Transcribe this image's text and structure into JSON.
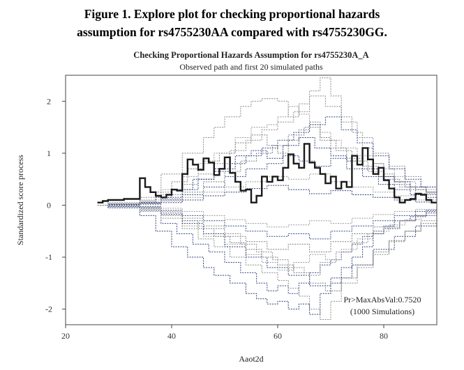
{
  "figure_caption": {
    "line1": "Figure 1. Explore plot for checking proportional hazards",
    "line2": "assumption for rs4755230AA compared with rs4755230GG."
  },
  "chart_data": {
    "type": "line",
    "title": "Checking Proportional Hazards Assumption for rs4755230A_A",
    "subtitle": "Observed path and first 20 simulated paths",
    "xlabel": "Aaot2d",
    "ylabel": "Standardized score process",
    "xlim": [
      20,
      90
    ],
    "ylim": [
      -2.3,
      2.5
    ],
    "xticks": [
      20,
      40,
      60,
      80
    ],
    "yticks": [
      -2,
      -1,
      0,
      1,
      2
    ],
    "grid": false,
    "annotation": {
      "line1": "Pr>MaxAbsVal:0.7520",
      "line2": "(1000 Simulations)"
    },
    "observed": {
      "x": [
        26,
        27,
        28,
        31,
        34,
        35,
        36,
        37,
        38,
        39,
        40,
        41,
        42,
        43,
        44,
        45,
        46,
        47,
        48,
        49,
        50,
        51,
        52,
        53,
        54,
        55,
        56,
        57,
        58,
        59,
        60,
        61,
        62,
        63,
        64,
        65,
        66,
        67,
        68,
        69,
        70,
        71,
        72,
        73,
        74,
        75,
        76,
        77,
        78,
        79,
        80,
        81,
        82,
        83,
        84,
        85,
        86,
        87,
        88,
        89,
        90
      ],
      "y": [
        0.05,
        0.08,
        0.1,
        0.12,
        0.52,
        0.35,
        0.25,
        0.18,
        0.15,
        0.2,
        0.3,
        0.28,
        0.6,
        0.88,
        0.78,
        0.68,
        0.9,
        0.82,
        0.58,
        0.7,
        0.92,
        0.62,
        0.45,
        0.28,
        0.3,
        0.05,
        0.18,
        0.55,
        0.45,
        0.55,
        0.48,
        0.72,
        0.98,
        0.8,
        0.72,
        1.18,
        0.82,
        0.72,
        0.6,
        0.42,
        0.55,
        0.32,
        0.45,
        0.35,
        0.95,
        0.78,
        1.1,
        0.88,
        0.6,
        0.72,
        0.48,
        0.32,
        0.15,
        0.05,
        0.1,
        0.12,
        0.22,
        0.2,
        0.1,
        0.05,
        0.05
      ]
    },
    "simulated": [
      {
        "x": [
          26,
          28,
          34,
          38,
          42,
          46,
          48,
          50,
          53,
          55,
          57,
          60,
          62,
          64,
          66,
          68,
          70,
          72,
          74,
          76,
          78,
          80,
          82,
          84,
          86,
          88,
          90
        ],
        "y": [
          0,
          0.05,
          0.15,
          0.6,
          1.0,
          1.3,
          1.5,
          1.7,
          1.9,
          2.0,
          2.05,
          2.0,
          1.7,
          1.95,
          2.2,
          2.45,
          2.1,
          1.7,
          1.4,
          1.1,
          0.8,
          0.6,
          0.45,
          0.35,
          0.3,
          0.25,
          0.2
        ]
      },
      {
        "x": [
          26,
          28,
          34,
          37,
          40,
          43,
          46,
          48,
          51,
          54,
          56,
          58,
          60,
          62,
          64,
          66,
          68,
          70,
          72,
          74,
          76,
          78,
          80,
          83,
          86,
          88,
          90
        ],
        "y": [
          0,
          -0.05,
          -0.2,
          -0.5,
          -0.8,
          -1.0,
          -1.2,
          -1.35,
          -1.5,
          -1.7,
          -1.8,
          -1.9,
          -1.85,
          -2.0,
          -1.9,
          -2.1,
          -1.7,
          -1.5,
          -1.2,
          -1.0,
          -0.8,
          -0.55,
          -0.45,
          -0.3,
          -0.2,
          -0.1,
          -0.05
        ]
      },
      {
        "x": [
          26,
          28,
          34,
          38,
          42,
          45,
          48,
          52,
          55,
          58,
          60,
          62,
          64,
          66,
          68,
          70,
          72,
          75,
          78,
          80,
          82,
          84,
          86,
          88,
          90
        ],
        "y": [
          0,
          0.02,
          0.1,
          0.3,
          0.55,
          0.8,
          1.0,
          1.3,
          1.5,
          1.55,
          1.7,
          1.9,
          1.75,
          1.55,
          1.4,
          1.25,
          1.1,
          0.95,
          0.8,
          0.7,
          0.55,
          0.45,
          0.35,
          0.3,
          0.2
        ]
      },
      {
        "x": [
          26,
          28,
          34,
          38,
          41,
          44,
          47,
          50,
          53,
          56,
          58,
          60,
          62,
          64,
          66,
          68,
          70,
          72,
          74,
          76,
          78,
          80,
          82,
          85,
          88,
          90
        ],
        "y": [
          0,
          -0.03,
          -0.1,
          -0.35,
          -0.55,
          -0.75,
          -0.9,
          -1.1,
          -1.3,
          -1.5,
          -1.65,
          -1.55,
          -1.7,
          -1.5,
          -1.3,
          -1.15,
          -1.05,
          -0.9,
          -0.75,
          -0.6,
          -0.5,
          -0.4,
          -0.3,
          -0.22,
          -0.15,
          -0.1
        ]
      },
      {
        "x": [
          26,
          28,
          34,
          37,
          40,
          43,
          46,
          49,
          52,
          55,
          58,
          60,
          62,
          64,
          66,
          68,
          70,
          73,
          76,
          79,
          82,
          85,
          88,
          90
        ],
        "y": [
          0,
          0.03,
          0.08,
          0.25,
          0.45,
          0.7,
          0.85,
          1.0,
          1.2,
          1.35,
          1.15,
          1.0,
          1.25,
          1.45,
          1.6,
          1.3,
          1.1,
          0.9,
          0.75,
          0.55,
          0.4,
          0.3,
          0.2,
          0.15
        ]
      },
      {
        "x": [
          26,
          28,
          34,
          38,
          42,
          45,
          48,
          51,
          54,
          57,
          60,
          62,
          64,
          66,
          68,
          70,
          72,
          75,
          78,
          81,
          84,
          87,
          90
        ],
        "y": [
          0,
          -0.02,
          -0.12,
          -0.25,
          -0.45,
          -0.65,
          -0.8,
          -1.0,
          -1.15,
          -1.3,
          -1.45,
          -1.6,
          -1.75,
          -2.0,
          -2.2,
          -1.85,
          -1.5,
          -1.2,
          -0.95,
          -0.7,
          -0.5,
          -0.3,
          -0.2
        ]
      },
      {
        "x": [
          26,
          28,
          34,
          37,
          40,
          44,
          48,
          52,
          55,
          58,
          61,
          64,
          67,
          70,
          73,
          76,
          79,
          82,
          85,
          88,
          90
        ],
        "y": [
          0,
          0.02,
          0.05,
          0.15,
          0.3,
          0.5,
          0.7,
          0.95,
          1.05,
          0.9,
          1.15,
          1.3,
          1.1,
          0.95,
          0.85,
          0.7,
          0.55,
          0.45,
          0.35,
          0.25,
          0.2
        ]
      },
      {
        "x": [
          26,
          28,
          34,
          38,
          42,
          46,
          50,
          54,
          57,
          60,
          63,
          66,
          69,
          72,
          75,
          78,
          81,
          84,
          87,
          90
        ],
        "y": [
          0,
          -0.02,
          -0.08,
          -0.2,
          -0.4,
          -0.6,
          -0.75,
          -0.95,
          -1.1,
          -1.25,
          -1.1,
          -0.95,
          -1.05,
          -0.85,
          -0.65,
          -0.5,
          -0.38,
          -0.28,
          -0.2,
          -0.12
        ]
      },
      {
        "x": [
          26,
          28,
          34,
          38,
          42,
          46,
          50,
          54,
          58,
          61,
          64,
          67,
          70,
          73,
          76,
          79,
          82,
          85,
          88,
          90
        ],
        "y": [
          0,
          0.01,
          0.04,
          0.1,
          0.2,
          0.35,
          0.55,
          0.7,
          0.8,
          0.95,
          0.85,
          0.75,
          0.9,
          0.7,
          0.55,
          0.4,
          0.3,
          0.2,
          0.15,
          0.1
        ]
      },
      {
        "x": [
          26,
          28,
          34,
          38,
          42,
          46,
          50,
          54,
          58,
          62,
          66,
          70,
          74,
          78,
          82,
          86,
          90
        ],
        "y": [
          0,
          -0.01,
          -0.05,
          -0.15,
          -0.3,
          -0.45,
          -0.6,
          -0.7,
          -0.85,
          -0.75,
          -0.9,
          -0.7,
          -0.55,
          -0.42,
          -0.3,
          -0.2,
          -0.1
        ]
      },
      {
        "x": [
          26,
          28,
          34,
          38,
          42,
          45,
          48,
          51,
          54,
          57,
          60,
          63,
          66,
          69,
          72,
          75,
          78,
          81,
          84,
          87,
          90
        ],
        "y": [
          0,
          0.02,
          0.06,
          0.2,
          0.4,
          0.6,
          0.8,
          1.05,
          1.25,
          1.45,
          1.6,
          1.8,
          2.1,
          1.9,
          1.6,
          1.3,
          1.0,
          0.75,
          0.55,
          0.35,
          0.25
        ]
      },
      {
        "x": [
          26,
          28,
          34,
          38,
          42,
          46,
          50,
          54,
          58,
          62,
          66,
          70,
          74,
          78,
          82,
          86,
          90
        ],
        "y": [
          0,
          -0.02,
          -0.06,
          -0.18,
          -0.35,
          -0.55,
          -0.8,
          -1.0,
          -1.2,
          -1.35,
          -1.55,
          -1.4,
          -1.15,
          -0.85,
          -0.6,
          -0.4,
          -0.25
        ]
      },
      {
        "x": [
          26,
          28,
          34,
          38,
          42,
          46,
          50,
          54,
          58,
          62,
          66,
          70,
          74,
          78,
          82,
          86,
          90
        ],
        "y": [
          0,
          0.01,
          0.03,
          0.08,
          0.15,
          0.25,
          0.35,
          0.45,
          0.55,
          0.5,
          0.6,
          0.45,
          0.35,
          0.25,
          0.18,
          0.1,
          0.05
        ]
      },
      {
        "x": [
          26,
          28,
          34,
          38,
          42,
          46,
          50,
          54,
          58,
          62,
          66,
          70,
          74,
          78,
          82,
          86,
          90
        ],
        "y": [
          0,
          -0.01,
          -0.03,
          -0.1,
          -0.2,
          -0.3,
          -0.4,
          -0.5,
          -0.6,
          -0.55,
          -0.65,
          -0.5,
          -0.4,
          -0.3,
          -0.2,
          -0.12,
          -0.06
        ]
      },
      {
        "x": [
          26,
          28,
          34,
          38,
          42,
          46,
          50,
          53,
          56,
          59,
          62,
          65,
          68,
          71,
          74,
          77,
          80,
          83,
          86,
          90
        ],
        "y": [
          0,
          0.02,
          0.05,
          0.12,
          0.25,
          0.45,
          0.65,
          0.85,
          1.0,
          1.15,
          1.35,
          1.5,
          1.25,
          1.05,
          0.85,
          0.65,
          0.5,
          0.35,
          0.22,
          0.15
        ]
      },
      {
        "x": [
          26,
          28,
          34,
          38,
          42,
          46,
          50,
          53,
          56,
          59,
          62,
          65,
          68,
          71,
          74,
          77,
          80,
          83,
          86,
          90
        ],
        "y": [
          0,
          -0.02,
          -0.05,
          -0.12,
          -0.25,
          -0.4,
          -0.55,
          -0.75,
          -0.9,
          -1.05,
          -1.2,
          -1.35,
          -1.1,
          -0.9,
          -0.72,
          -0.55,
          -0.42,
          -0.3,
          -0.2,
          -0.12
        ]
      },
      {
        "x": [
          26,
          28,
          34,
          38,
          42,
          46,
          50,
          54,
          58,
          62,
          66,
          70,
          74,
          78,
          82,
          86,
          90
        ],
        "y": [
          0,
          0.01,
          0.02,
          0.05,
          0.1,
          0.18,
          0.25,
          0.32,
          0.38,
          0.3,
          0.22,
          0.28,
          0.2,
          0.15,
          0.1,
          0.06,
          0.03
        ]
      },
      {
        "x": [
          26,
          28,
          34,
          38,
          42,
          46,
          50,
          54,
          58,
          62,
          66,
          70,
          74,
          78,
          82,
          86,
          90
        ],
        "y": [
          0,
          -0.01,
          -0.02,
          -0.06,
          -0.12,
          -0.2,
          -0.28,
          -0.35,
          -0.42,
          -0.38,
          -0.3,
          -0.35,
          -0.25,
          -0.18,
          -0.12,
          -0.08,
          -0.04
        ]
      },
      {
        "x": [
          26,
          28,
          34,
          38,
          42,
          45,
          48,
          51,
          54,
          57,
          60,
          63,
          66,
          69,
          72,
          75,
          78,
          81,
          84,
          87,
          90
        ],
        "y": [
          0,
          0.02,
          0.05,
          0.15,
          0.3,
          0.5,
          0.65,
          0.8,
          0.95,
          1.1,
          1.25,
          1.4,
          1.55,
          1.7,
          1.45,
          1.2,
          0.95,
          0.7,
          0.5,
          0.35,
          0.25
        ]
      },
      {
        "x": [
          26,
          28,
          34,
          38,
          42,
          45,
          48,
          51,
          54,
          57,
          60,
          63,
          66,
          69,
          72,
          75,
          78,
          81,
          84,
          87,
          90
        ],
        "y": [
          0,
          -0.02,
          -0.05,
          -0.15,
          -0.3,
          -0.45,
          -0.6,
          -0.72,
          -0.85,
          -1.0,
          -1.15,
          -1.3,
          -1.5,
          -1.65,
          -1.4,
          -1.15,
          -0.9,
          -0.68,
          -0.5,
          -0.35,
          -0.22
        ]
      }
    ]
  }
}
